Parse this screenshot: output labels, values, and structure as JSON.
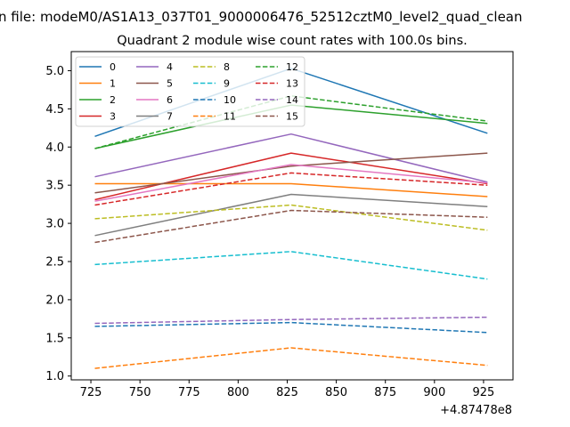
{
  "chart_data": {
    "type": "line",
    "suptitle": "n file: modeM0/AS1A13_037T01_9000006476_52512cztM0_level2_quad_clean",
    "title": "Quadrant 2 module wise count rates with 100.0s bins.",
    "xlabel": "",
    "ylabel": "",
    "x_offset_label": "+4.87478e8",
    "x": [
      727,
      827,
      927
    ],
    "xlim": [
      715,
      940
    ],
    "ylim": [
      0.95,
      5.25
    ],
    "xticks": [
      725,
      750,
      775,
      800,
      825,
      850,
      875,
      900,
      925
    ],
    "yticks": [
      1.0,
      1.5,
      2.0,
      2.5,
      3.0,
      3.5,
      4.0,
      4.5,
      5.0
    ],
    "xtick_labels": [
      "725",
      "750",
      "775",
      "800",
      "825",
      "850",
      "875",
      "900",
      "925"
    ],
    "ytick_labels": [
      "1.0",
      "1.5",
      "2.0",
      "2.5",
      "3.0",
      "3.5",
      "4.0",
      "4.5",
      "5.0"
    ],
    "grid": false,
    "legend": {
      "location": "upper-left",
      "columns": 4
    },
    "series": [
      {
        "name": "0",
        "values": [
          4.14,
          5.03,
          4.18
        ],
        "color": "#1f77b4",
        "dash": "solid"
      },
      {
        "name": "1",
        "values": [
          3.52,
          3.52,
          3.35
        ],
        "color": "#ff7f0e",
        "dash": "solid"
      },
      {
        "name": "2",
        "values": [
          3.98,
          4.55,
          4.31
        ],
        "color": "#2ca02c",
        "dash": "solid"
      },
      {
        "name": "3",
        "values": [
          3.31,
          3.92,
          3.52
        ],
        "color": "#d62728",
        "dash": "solid"
      },
      {
        "name": "4",
        "values": [
          3.61,
          4.17,
          3.54
        ],
        "color": "#9467bd",
        "dash": "solid"
      },
      {
        "name": "5",
        "values": [
          3.4,
          3.75,
          3.92
        ],
        "color": "#8c564b",
        "dash": "solid"
      },
      {
        "name": "6",
        "values": [
          3.29,
          3.77,
          3.53
        ],
        "color": "#e377c2",
        "dash": "solid"
      },
      {
        "name": "7",
        "values": [
          2.84,
          3.38,
          3.22
        ],
        "color": "#7f7f7f",
        "dash": "solid"
      },
      {
        "name": "8",
        "values": [
          3.06,
          3.24,
          2.91
        ],
        "color": "#bcbd22",
        "dash": "dashed"
      },
      {
        "name": "9",
        "values": [
          2.46,
          2.63,
          2.27
        ],
        "color": "#17becf",
        "dash": "dashed"
      },
      {
        "name": "10",
        "values": [
          1.65,
          1.7,
          1.57
        ],
        "color": "#1f77b4",
        "dash": "dashed"
      },
      {
        "name": "11",
        "values": [
          1.1,
          1.37,
          1.14
        ],
        "color": "#ff7f0e",
        "dash": "dashed"
      },
      {
        "name": "12",
        "values": [
          3.98,
          4.67,
          4.34
        ],
        "color": "#2ca02c",
        "dash": "dashed"
      },
      {
        "name": "13",
        "values": [
          3.24,
          3.66,
          3.5
        ],
        "color": "#d62728",
        "dash": "dashed"
      },
      {
        "name": "14",
        "values": [
          1.69,
          1.74,
          1.77
        ],
        "color": "#9467bd",
        "dash": "dashed"
      },
      {
        "name": "15",
        "values": [
          2.75,
          3.17,
          3.08
        ],
        "color": "#8c564b",
        "dash": "dashed"
      }
    ]
  }
}
